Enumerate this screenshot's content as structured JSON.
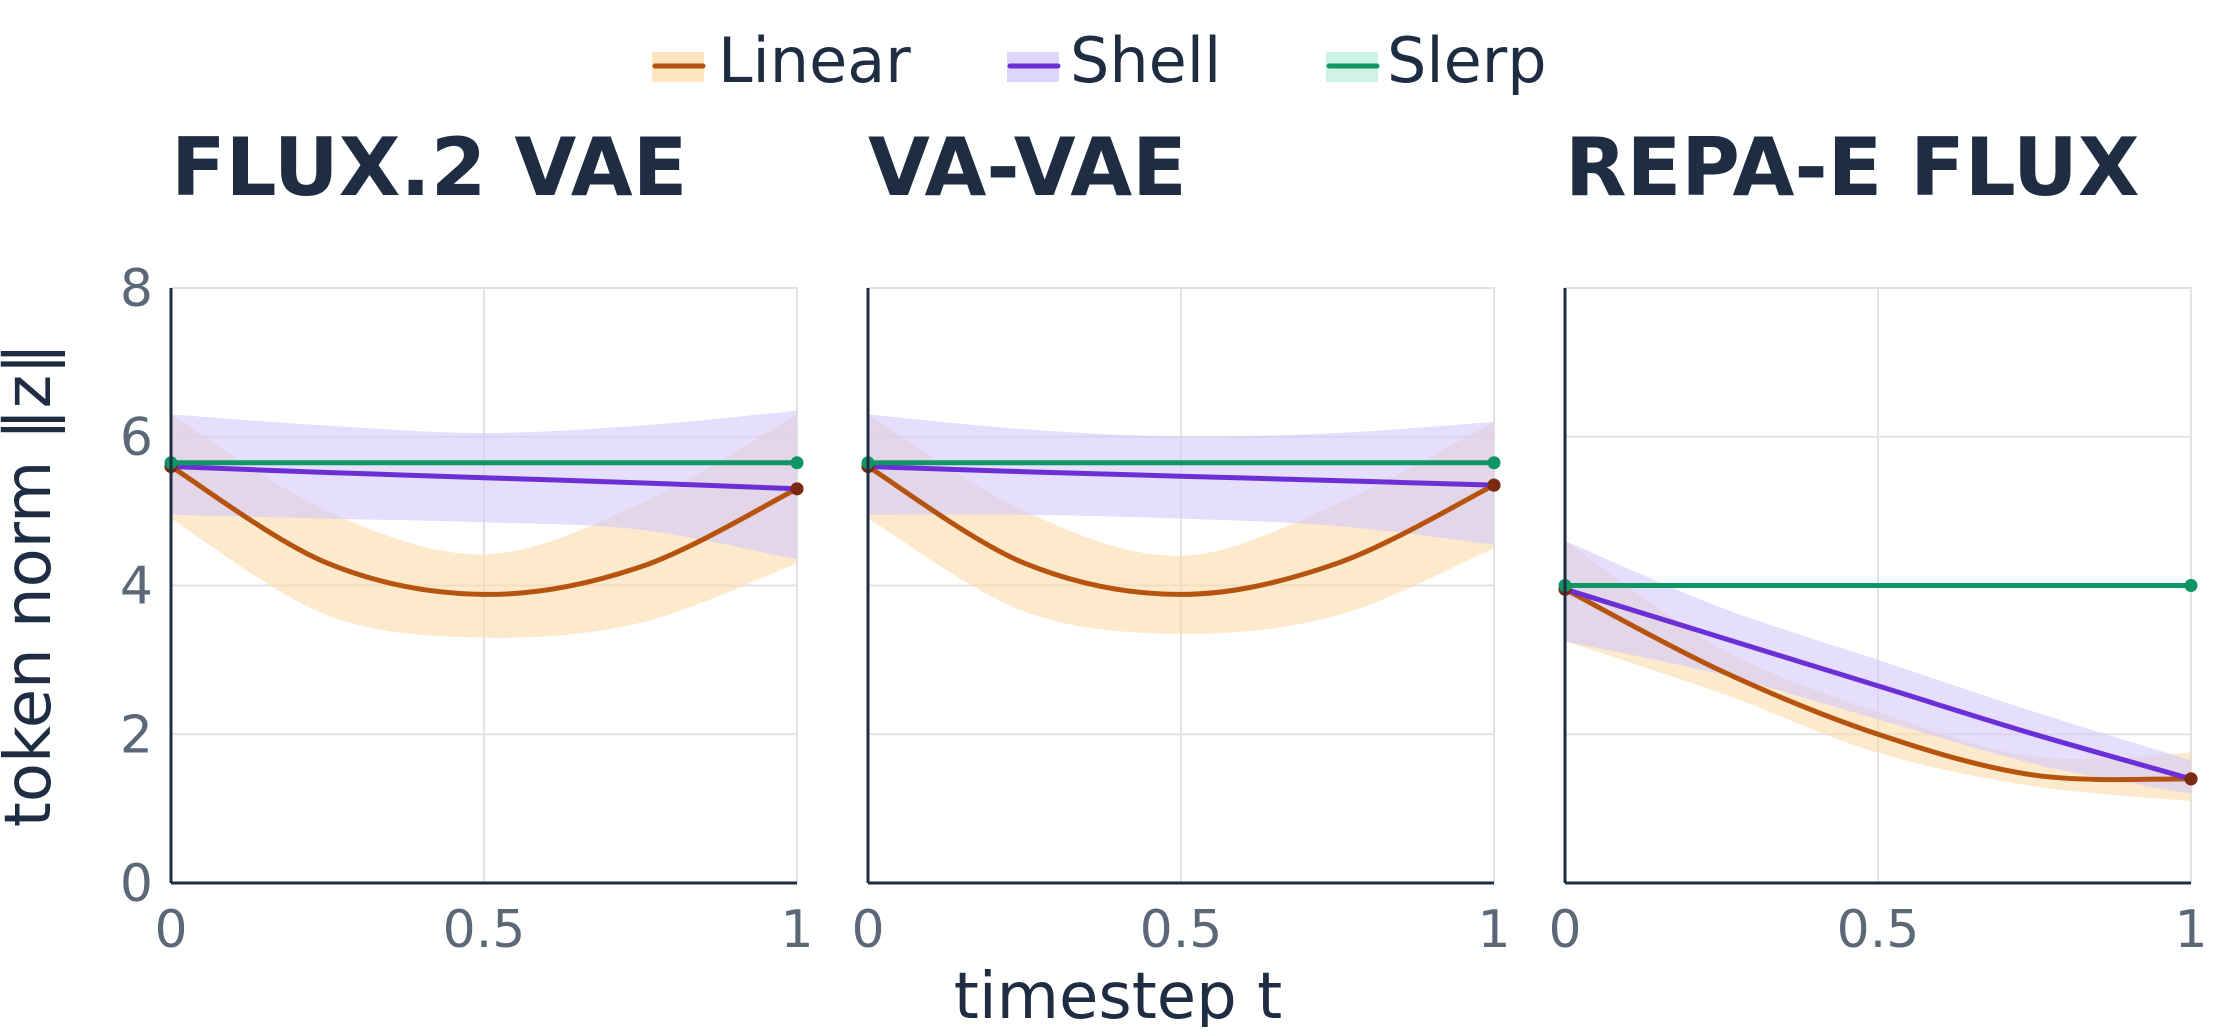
{
  "chart_data": {
    "type": "line",
    "legend": {
      "placement": "top-center",
      "items": [
        {
          "label": "Linear",
          "color": "#b5530f",
          "band_color": "#fcdcaa"
        },
        {
          "label": "Shell",
          "color": "#6c2fd6",
          "band_color": "#d3c8fb"
        },
        {
          "label": "Slerp",
          "color": "#109565",
          "band_color": "#bdeedb"
        }
      ]
    },
    "xlabel": "timestep t",
    "ylabel": "token norm ‖z‖",
    "xlim": [
      0,
      1
    ],
    "ylim": [
      0,
      8
    ],
    "grid": true,
    "y_ticks": [
      "0",
      "2",
      "4",
      "6",
      "8"
    ],
    "x_ticks": [
      {
        "value": 0,
        "label": "0"
      },
      {
        "value": 0.5,
        "label": "0.5"
      },
      {
        "value": 1,
        "label": "1"
      }
    ],
    "panels": [
      {
        "title": "FLUX.2 VAE",
        "series": [
          {
            "name": "Linear",
            "x": [
              0,
              0.25,
              0.5,
              0.75,
              1
            ],
            "y": [
              5.6,
              4.3,
              3.88,
              4.25,
              5.3
            ],
            "lower": [
              4.9,
              3.6,
              3.3,
              3.5,
              4.3
            ],
            "upper": [
              6.3,
              5.0,
              4.42,
              5.1,
              6.3
            ]
          },
          {
            "name": "Shell",
            "x": [
              0,
              0.25,
              0.5,
              0.75,
              1
            ],
            "y": [
              5.6,
              5.52,
              5.45,
              5.38,
              5.3
            ],
            "lower": [
              4.95,
              4.9,
              4.85,
              4.75,
              4.35
            ],
            "upper": [
              6.3,
              6.15,
              6.05,
              6.15,
              6.35
            ]
          },
          {
            "name": "Slerp",
            "x": [
              0,
              1
            ],
            "y": [
              5.65,
              5.65
            ]
          }
        ]
      },
      {
        "title": "VA-VAE",
        "series": [
          {
            "name": "Linear",
            "x": [
              0,
              0.25,
              0.5,
              0.75,
              1
            ],
            "y": [
              5.6,
              4.3,
              3.88,
              4.3,
              5.35
            ],
            "lower": [
              4.9,
              3.65,
              3.35,
              3.6,
              4.5
            ],
            "upper": [
              6.3,
              5.0,
              4.4,
              5.1,
              6.2
            ]
          },
          {
            "name": "Shell",
            "x": [
              0,
              0.25,
              0.5,
              0.75,
              1
            ],
            "y": [
              5.6,
              5.53,
              5.47,
              5.41,
              5.35
            ],
            "lower": [
              4.95,
              4.95,
              4.9,
              4.8,
              4.55
            ],
            "upper": [
              6.3,
              6.1,
              6.0,
              6.05,
              6.2
            ]
          },
          {
            "name": "Slerp",
            "x": [
              0,
              1
            ],
            "y": [
              5.65,
              5.65
            ]
          }
        ]
      },
      {
        "title": "REPA-E FLUX",
        "series": [
          {
            "name": "Linear",
            "x": [
              0,
              0.25,
              0.5,
              0.75,
              1
            ],
            "y": [
              3.95,
              2.85,
              2.0,
              1.45,
              1.4
            ],
            "lower": [
              3.25,
              2.55,
              1.75,
              1.3,
              1.1
            ],
            "upper": [
              4.6,
              3.15,
              2.3,
              1.7,
              1.75
            ]
          },
          {
            "name": "Shell",
            "x": [
              0,
              0.25,
              0.5,
              0.75,
              1
            ],
            "y": [
              3.95,
              3.3,
              2.65,
              2.0,
              1.4
            ],
            "lower": [
              3.25,
              2.8,
              2.2,
              1.6,
              1.2
            ],
            "upper": [
              4.6,
              3.7,
              3.0,
              2.3,
              1.65
            ]
          },
          {
            "name": "Slerp",
            "x": [
              0,
              1
            ],
            "y": [
              4.0,
              4.0
            ]
          }
        ]
      }
    ]
  }
}
